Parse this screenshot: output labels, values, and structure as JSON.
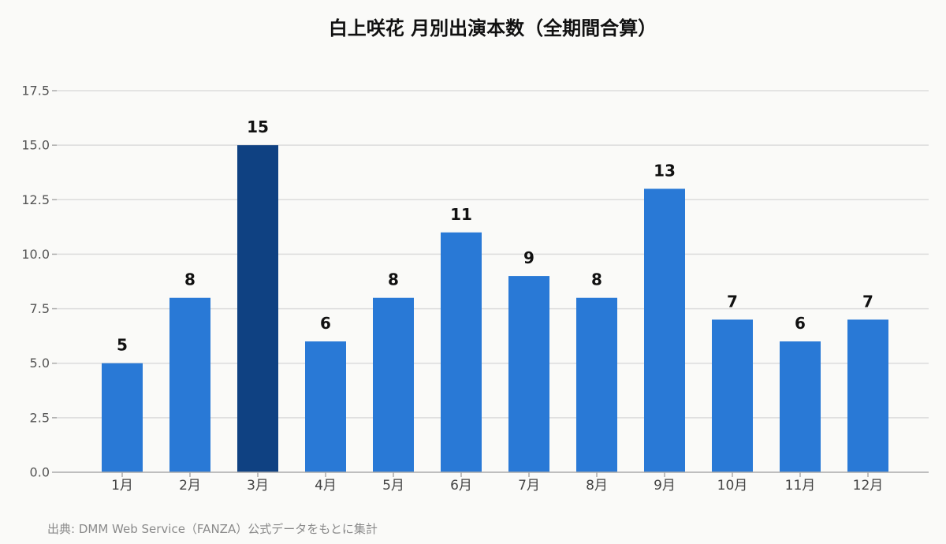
{
  "chart_data": {
    "type": "bar",
    "title": "白上咲花 月別出演本数（全期間合算）",
    "categories": [
      "1月",
      "2月",
      "3月",
      "4月",
      "5月",
      "6月",
      "7月",
      "8月",
      "9月",
      "10月",
      "11月",
      "12月"
    ],
    "values": [
      5,
      8,
      15,
      6,
      8,
      11,
      9,
      8,
      13,
      7,
      6,
      7
    ],
    "data_labels": [
      "5",
      "8",
      "15",
      "6",
      "8",
      "11",
      "9",
      "8",
      "13",
      "7",
      "6",
      "7"
    ],
    "highlight_index": 2,
    "ylim": [
      0,
      17.5
    ],
    "yticks": [
      0,
      2.5,
      5,
      7.5,
      10,
      12.5,
      15,
      17.5
    ],
    "ytick_labels": [
      "0.0",
      "2.5",
      "5.0",
      "7.5",
      "10.0",
      "12.5",
      "15.0",
      "17.5"
    ],
    "xlabel": "",
    "ylabel": "",
    "grid": true,
    "legend": "none",
    "colors": {
      "bar": "#2979d6",
      "highlight": "#0f4182",
      "grid": "#dcdcdc",
      "axis": "#aaaaaa",
      "tick_text": "#555555",
      "label_text": "#111111"
    }
  },
  "source": "出典: DMM Web Service（FANZA）公式データをもとに集計"
}
